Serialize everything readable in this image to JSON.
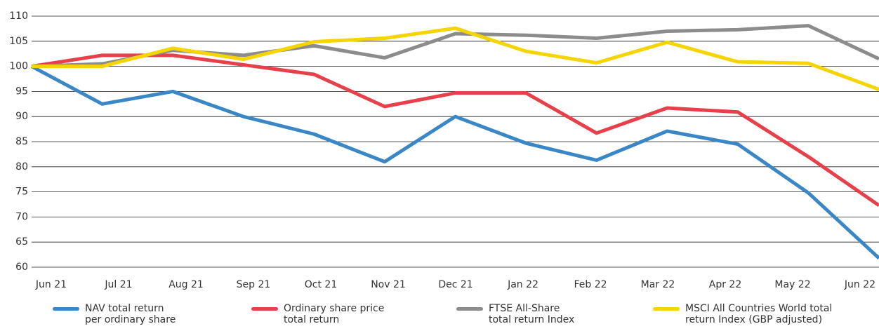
{
  "chart_data": {
    "type": "line",
    "categories": [
      "Jun 21",
      "Jul 21",
      "Aug 21",
      "Sep 21",
      "Oct 21",
      "Nov 21",
      "Dec 21",
      "Jan 22",
      "Feb 22",
      "Mar 22",
      "Apr 22",
      "May 22",
      "Jun 22"
    ],
    "series": [
      {
        "name": "NAV total return per ordinary share",
        "color": "#3a87c8",
        "values": [
          100,
          92.5,
          95,
          90,
          86.5,
          81,
          90,
          84.7,
          81.3,
          87.1,
          84.5,
          74.8,
          61.8
        ]
      },
      {
        "name": "Ordinary share price total return",
        "color": "#e8404a",
        "values": [
          100,
          102.2,
          102.2,
          100.3,
          98.4,
          92,
          94.7,
          94.7,
          86.7,
          91.7,
          90.9,
          82,
          72.3
        ]
      },
      {
        "name": "FTSE All-Share total return Index",
        "color": "#8c8c8c",
        "values": [
          100,
          100.5,
          103.2,
          102.2,
          104.1,
          101.7,
          106.5,
          106.2,
          105.6,
          107,
          107.3,
          108.1,
          101.5
        ]
      },
      {
        "name": "MSCI All Countries World total return Index (GBP adjusted)",
        "color": "#f5d400",
        "values": [
          100,
          100,
          103.6,
          101.4,
          104.9,
          105.6,
          107.6,
          103,
          100.7,
          104.8,
          100.9,
          100.6,
          95.4
        ]
      }
    ],
    "ylim": [
      60,
      110
    ],
    "yticks": [
      60,
      65,
      70,
      75,
      80,
      85,
      90,
      95,
      100,
      105,
      110
    ],
    "grid": true,
    "legend": "bottom"
  }
}
